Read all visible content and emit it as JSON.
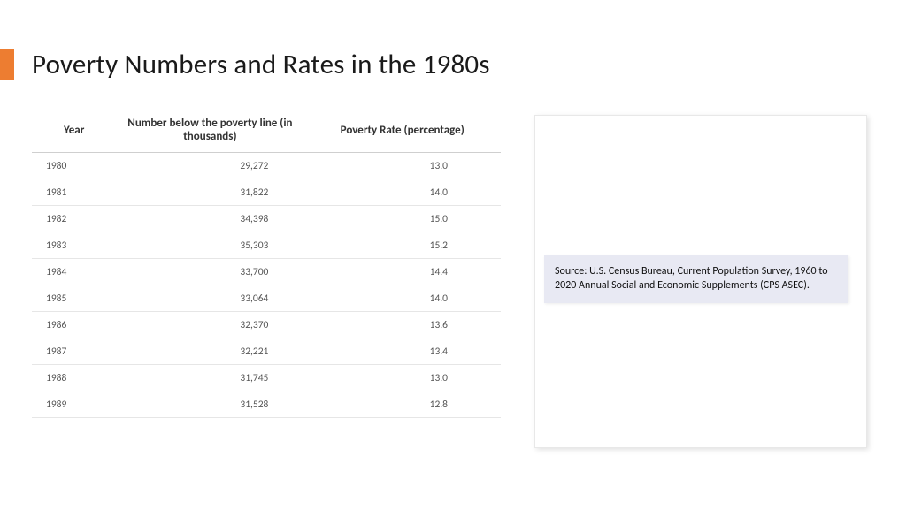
{
  "accent_color": "#ed7d31",
  "title": "Poverty Numbers and Rates in the 1980s",
  "table": {
    "columns": [
      "Year",
      "Number below the poverty line (in thousands)",
      "Poverty Rate (percentage)"
    ],
    "rows": [
      [
        "1980",
        "29,272",
        "13.0"
      ],
      [
        "1981",
        "31,822",
        "14.0"
      ],
      [
        "1982",
        "34,398",
        "15.0"
      ],
      [
        "1983",
        "35,303",
        "15.2"
      ],
      [
        "1984",
        "33,700",
        "14.4"
      ],
      [
        "1985",
        "33,064",
        "14.0"
      ],
      [
        "1986",
        "32,370",
        "13.6"
      ],
      [
        "1987",
        "32,221",
        "13.4"
      ],
      [
        "1988",
        "31,745",
        "13.0"
      ],
      [
        "1989",
        "31,528",
        "12.8"
      ]
    ],
    "header_fontsize": 13,
    "cell_fontsize": 11.5,
    "border_color": "#e6e6e6",
    "header_border_color": "#cfcfcf"
  },
  "source_box": {
    "text": "Source: U.S. Census Bureau, Current Population Survey, 1960 to 2020 Annual Social and Economic Supplements (CPS ASEC).",
    "background": "#e8e9f3",
    "fontsize": 12
  },
  "card": {
    "background": "#ffffff",
    "border_color": "#e8e8e8",
    "shadow": "2px 2px 6px rgba(0,0,0,0.12)"
  }
}
